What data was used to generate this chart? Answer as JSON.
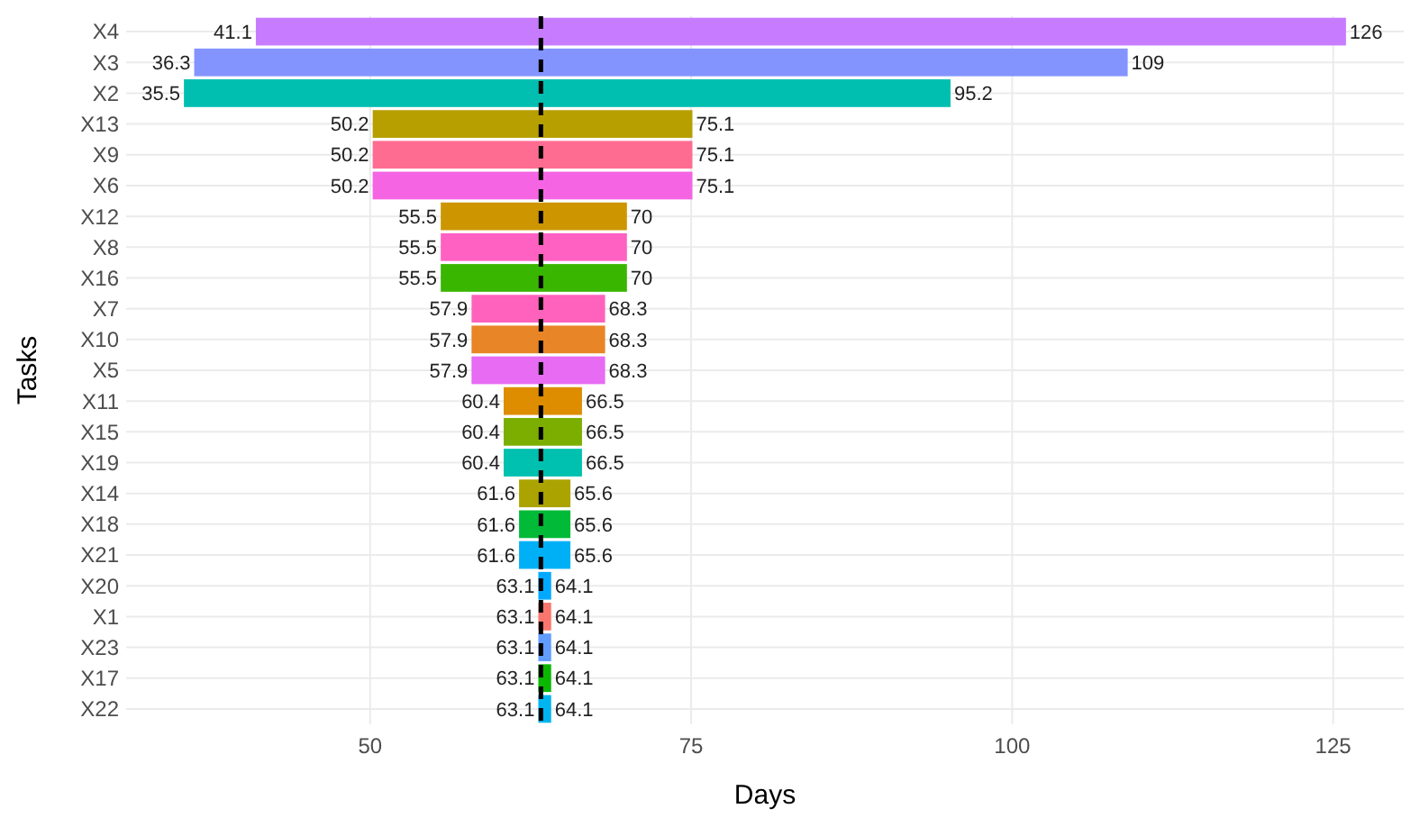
{
  "chart_data": {
    "type": "bar",
    "orientation": "horizontal",
    "xlabel": "Days",
    "ylabel": "Tasks",
    "categories": [
      "X4",
      "X3",
      "X2",
      "X13",
      "X9",
      "X6",
      "X12",
      "X8",
      "X16",
      "X7",
      "X10",
      "X5",
      "X11",
      "X15",
      "X19",
      "X14",
      "X18",
      "X21",
      "X20",
      "X1",
      "X23",
      "X17",
      "X22"
    ],
    "base": [
      41.1,
      36.3,
      35.5,
      50.2,
      50.2,
      50.2,
      55.5,
      55.5,
      55.5,
      57.9,
      57.9,
      57.9,
      60.4,
      60.4,
      60.4,
      61.6,
      61.6,
      61.6,
      63.1,
      63.1,
      63.1,
      63.1,
      63.1
    ],
    "values": [
      84.9,
      72.7,
      59.7,
      24.9,
      24.9,
      24.9,
      14.5,
      14.5,
      14.5,
      10.4,
      10.4,
      10.4,
      6.1,
      6.1,
      6.1,
      4.0,
      4.0,
      4.0,
      1.0,
      1.0,
      1.0,
      1.0,
      1.0
    ],
    "colors": [
      "#c77cff",
      "#8494ff",
      "#00bfb0",
      "#b79f00",
      "#ff6c91",
      "#f564e3",
      "#cd9600",
      "#ff61c3",
      "#39b600",
      "#ff62bc",
      "#e88526",
      "#e76bf3",
      "#de8c00",
      "#7cae00",
      "#00c0af",
      "#aba300",
      "#00ba38",
      "#00b0f6",
      "#00a9ff",
      "#f8766d",
      "#619cff",
      "#0cb702",
      "#00b4f0"
    ],
    "xlim": [
      31,
      130.5
    ],
    "xticks": [
      50,
      75,
      100,
      125
    ],
    "grid": true,
    "ref_lines": [
      {
        "axis": "x",
        "value": 63.3,
        "color": "#000000",
        "line_style": "dashed"
      }
    ],
    "annotations": [
      {
        "text": "41.1",
        "x": 41.1,
        "y": "X4"
      },
      {
        "text": "126",
        "x": 126,
        "y": "X4"
      },
      {
        "text": "36.3",
        "x": 36.3,
        "y": "X3"
      },
      {
        "text": "109",
        "x": 109,
        "y": "X3"
      },
      {
        "text": "35.5",
        "x": 35.5,
        "y": "X2"
      },
      {
        "text": "95.2",
        "x": 95.2,
        "y": "X2"
      },
      {
        "text": "50.2",
        "x": 50.2,
        "y": "X13"
      },
      {
        "text": "75.1",
        "x": 75.1,
        "y": "X13"
      },
      {
        "text": "50.2",
        "x": 50.2,
        "y": "X9"
      },
      {
        "text": "75.1",
        "x": 75.1,
        "y": "X9"
      },
      {
        "text": "50.2",
        "x": 50.2,
        "y": "X6"
      },
      {
        "text": "75.1",
        "x": 75.1,
        "y": "X6"
      },
      {
        "text": "55.5",
        "x": 55.5,
        "y": "X12"
      },
      {
        "text": "70",
        "x": 70,
        "y": "X12"
      },
      {
        "text": "55.5",
        "x": 55.5,
        "y": "X8"
      },
      {
        "text": "70",
        "x": 70,
        "y": "X8"
      },
      {
        "text": "55.5",
        "x": 55.5,
        "y": "X16"
      },
      {
        "text": "70",
        "x": 70,
        "y": "X16"
      },
      {
        "text": "57.9",
        "x": 57.9,
        "y": "X7"
      },
      {
        "text": "68.3",
        "x": 68.3,
        "y": "X7"
      },
      {
        "text": "57.9",
        "x": 57.9,
        "y": "X10"
      },
      {
        "text": "68.3",
        "x": 68.3,
        "y": "X10"
      },
      {
        "text": "57.9",
        "x": 57.9,
        "y": "X5"
      },
      {
        "text": "68.3",
        "x": 68.3,
        "y": "X5"
      },
      {
        "text": "60.4",
        "x": 60.4,
        "y": "X11"
      },
      {
        "text": "66.5",
        "x": 66.5,
        "y": "X11"
      },
      {
        "text": "60.4",
        "x": 60.4,
        "y": "X15"
      },
      {
        "text": "66.5",
        "x": 66.5,
        "y": "X15"
      },
      {
        "text": "60.4",
        "x": 60.4,
        "y": "X19"
      },
      {
        "text": "66.5",
        "x": 66.5,
        "y": "X19"
      },
      {
        "text": "61.6",
        "x": 61.6,
        "y": "X14"
      },
      {
        "text": "65.6",
        "x": 65.6,
        "y": "X14"
      },
      {
        "text": "61.6",
        "x": 61.6,
        "y": "X18"
      },
      {
        "text": "65.6",
        "x": 65.6,
        "y": "X18"
      },
      {
        "text": "61.6",
        "x": 61.6,
        "y": "X21"
      },
      {
        "text": "65.6",
        "x": 65.6,
        "y": "X21"
      },
      {
        "text": "63.1",
        "x": 63.1,
        "y": "X20"
      },
      {
        "text": "64.1",
        "x": 64.1,
        "y": "X20"
      },
      {
        "text": "63.1",
        "x": 63.1,
        "y": "X1"
      },
      {
        "text": "64.1",
        "x": 64.1,
        "y": "X1"
      },
      {
        "text": "63.1",
        "x": 63.1,
        "y": "X23"
      },
      {
        "text": "64.1",
        "x": 64.1,
        "y": "X23"
      },
      {
        "text": "63.1",
        "x": 63.1,
        "y": "X17"
      },
      {
        "text": "64.1",
        "x": 64.1,
        "y": "X17"
      },
      {
        "text": "63.1",
        "x": 63.1,
        "y": "X22"
      },
      {
        "text": "64.1",
        "x": 64.1,
        "y": "X22"
      }
    ]
  }
}
